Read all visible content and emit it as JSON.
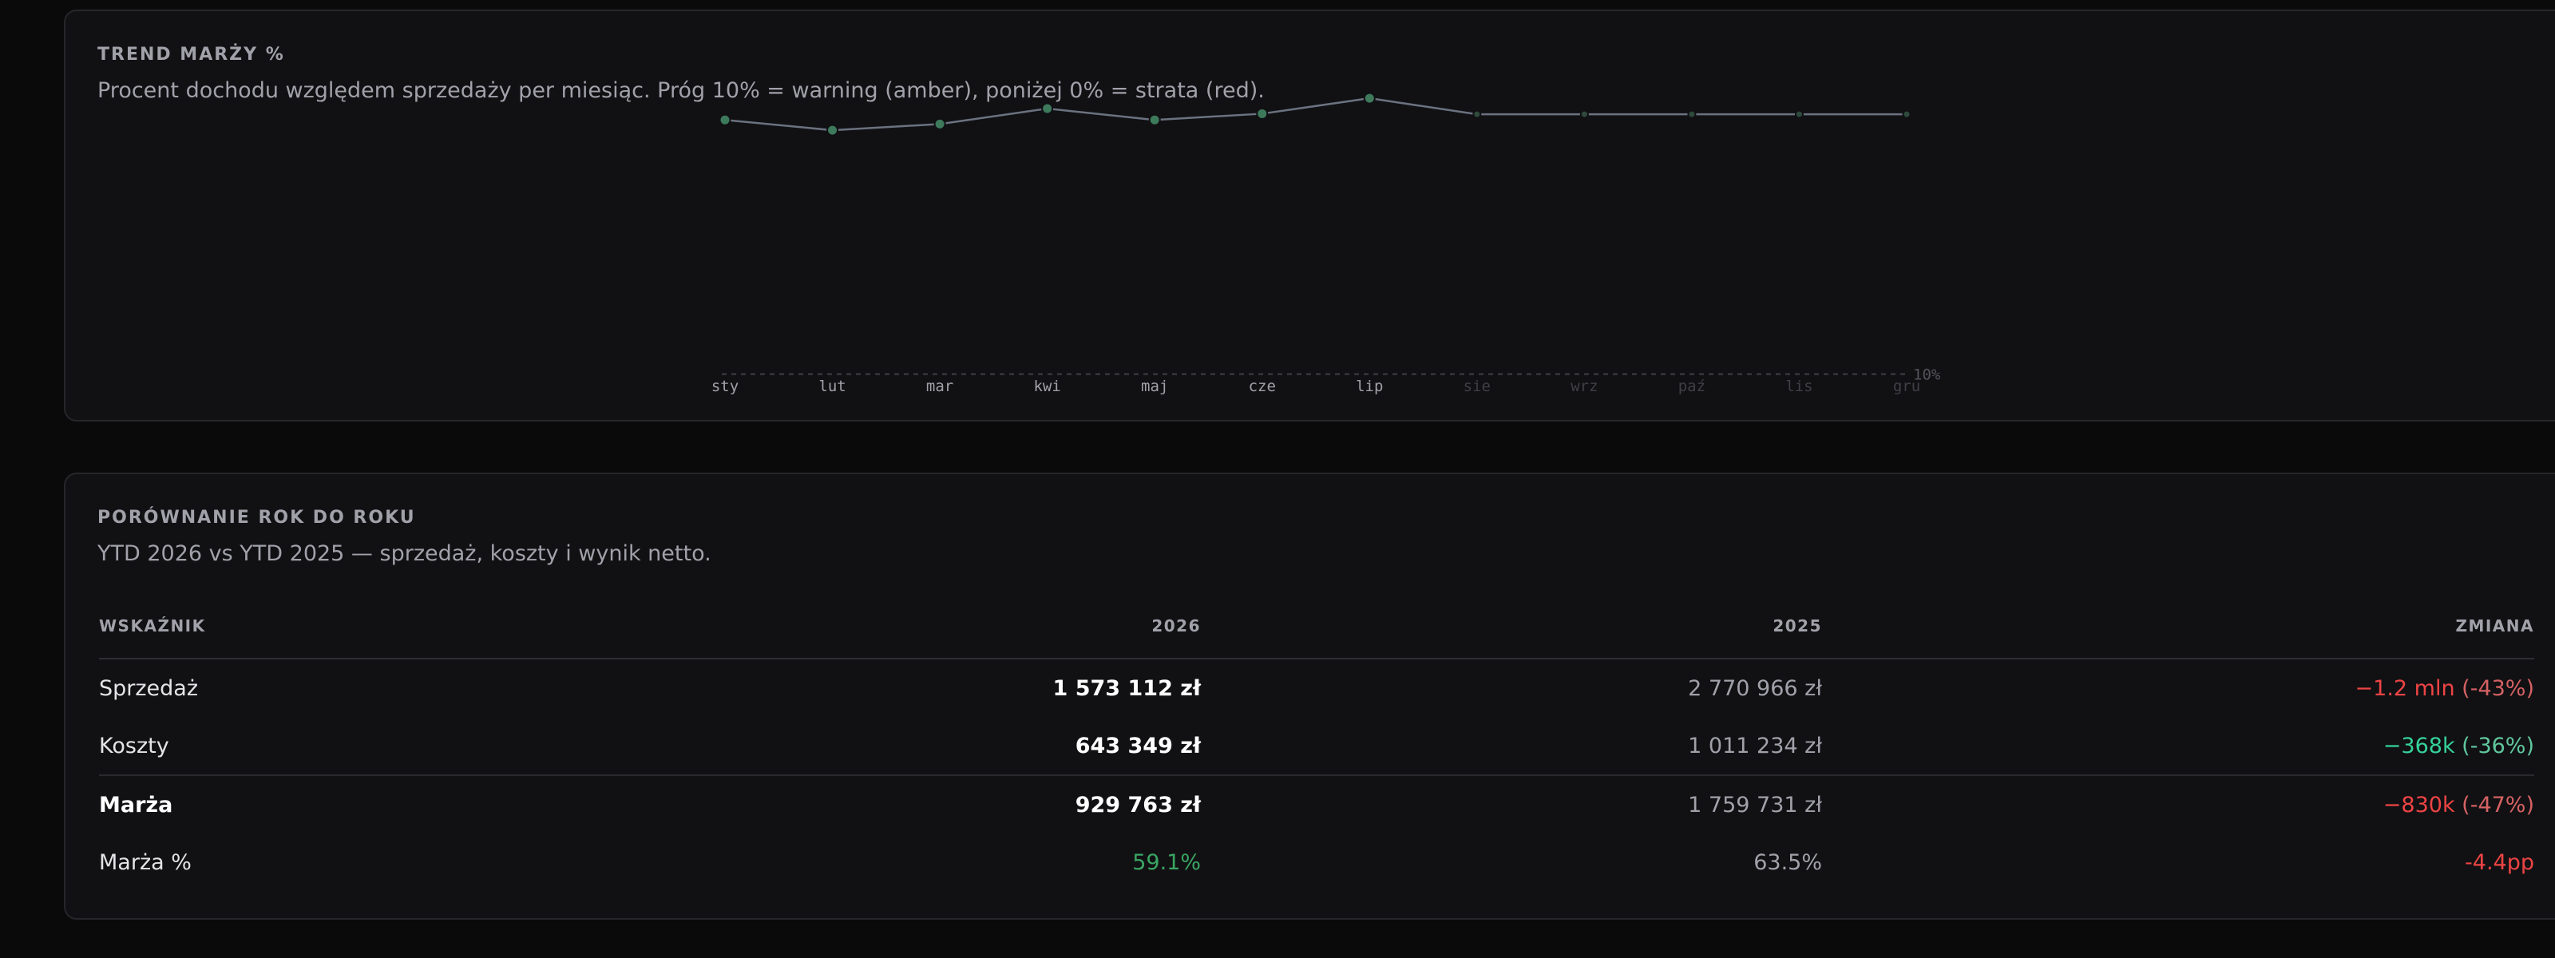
{
  "trend": {
    "title": "TREND MARŻY %",
    "description": "Procent dochodu względem sprzedaży per miesiąc. Próg 10% = warning (amber), poniżej 0% = strata (red).",
    "threshold_label": "10%"
  },
  "chart_data": {
    "type": "line",
    "title": "TREND MARŻY %",
    "categories": [
      "sty",
      "lut",
      "mar",
      "kwi",
      "maj",
      "cze",
      "lip",
      "sie",
      "wrz",
      "paź",
      "lis",
      "gru"
    ],
    "series": [
      {
        "values": [
          59.3,
          57.3,
          58.5,
          61.5,
          59.3,
          60.5,
          63.5,
          60.4,
          60.4,
          60.4,
          60.4,
          60.4
        ]
      }
    ],
    "actual_months": 7,
    "threshold": 10,
    "ylim": [
      7,
      68
    ],
    "colors": {
      "line": "#6b7280",
      "point_actual": "#3d7a5c",
      "point_projected": "#2e4a3d",
      "threshold": "#3f3f46"
    }
  },
  "yoy": {
    "title": "PORÓWNANIE ROK DO ROKU",
    "description": "YTD 2026 vs YTD 2025 — sprzedaż, koszty i wynik netto.",
    "headers": {
      "metric": "WSKAŹNIK",
      "y2026": "2026",
      "y2025": "2025",
      "change": "ZMIANA"
    },
    "rows": [
      {
        "label": "Sprzedaż",
        "y2026": "1 573 112 zł",
        "y2025": "2 770 966 zł",
        "change_main": "−1.2 mln",
        "change_pct": " (-43%)"
      },
      {
        "label": "Koszty",
        "y2026": "643 349 zł",
        "y2025": "1 011 234 zł",
        "change_main": "−368k",
        "change_pct": " (-36%)"
      },
      {
        "label": "Marża",
        "y2026": "929 763 zł",
        "y2025": "1 759 731 zł",
        "change_main": "−830k",
        "change_pct": " (-47%)"
      },
      {
        "label": "Marża %",
        "y2026": "59.1%",
        "y2025": "63.5%",
        "change_main": "-4.4pp",
        "change_pct": ""
      }
    ]
  }
}
